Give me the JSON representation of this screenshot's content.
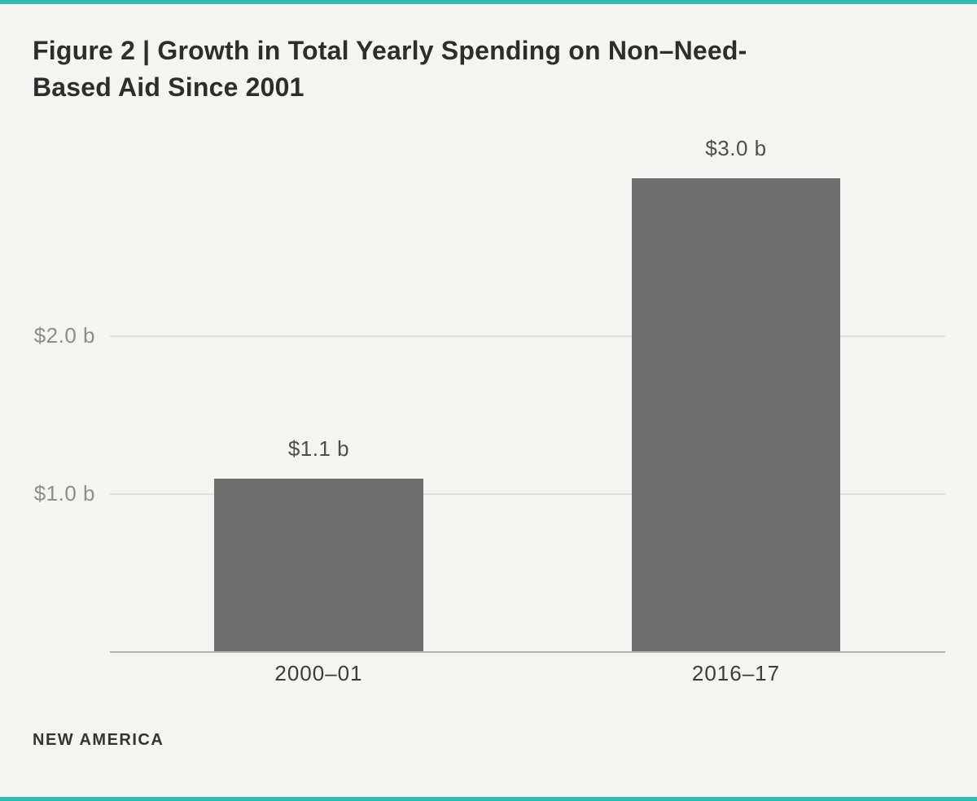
{
  "page": {
    "background_color": "#f4f4f3",
    "accent_color": "#2ebcb3"
  },
  "title": {
    "line1": "Figure 2 | Growth in Total Yearly Spending on Non–Need-",
    "line2": "Based Aid Since 2001"
  },
  "footer": {
    "brand": "NEW AMERICA"
  },
  "chart_data": {
    "type": "bar",
    "title": "Figure 2 | Growth in Total Yearly Spending on Non–Need-Based Aid Since 2001",
    "categories": [
      "2000–01",
      "2016–17"
    ],
    "values": [
      1.1,
      3.0
    ],
    "value_labels": [
      "$1.1 b",
      "$3.0 b"
    ],
    "ytick_values": [
      1.0,
      2.0
    ],
    "ytick_labels": [
      "$1.0 b",
      "$2.0 b"
    ],
    "ylim": [
      0,
      3.0
    ],
    "xlabel": "",
    "ylabel": "",
    "grid": true,
    "legend": false,
    "bar_color": "#706f6f"
  }
}
